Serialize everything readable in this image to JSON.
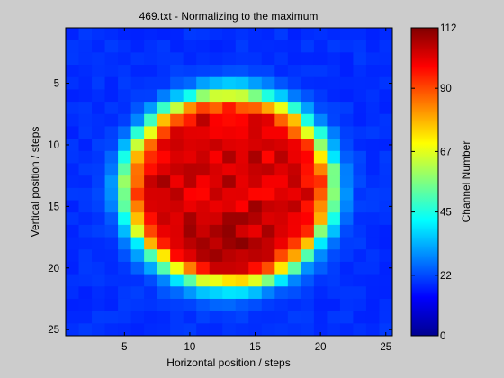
{
  "chart_data": {
    "type": "heatmap",
    "title": "469.txt - Normalizing to the maximum",
    "xlabel": "Horizontal position / steps",
    "ylabel": "Vertical position / steps",
    "colorbar_label": "Channel Number",
    "colormap": "jet",
    "xlim": [
      0.5,
      25.5
    ],
    "ylim": [
      0.5,
      25.5
    ],
    "y_reversed": true,
    "xticks": [
      5,
      10,
      15,
      20,
      25
    ],
    "xtick_labels": [
      "5",
      "10",
      "15",
      "20",
      "25"
    ],
    "yticks": [
      5,
      10,
      15,
      20,
      25
    ],
    "ytick_labels": [
      "5",
      "10",
      "15",
      "20",
      "25"
    ],
    "clim": [
      0,
      112
    ],
    "colorbar_ticks": [
      0,
      22,
      45,
      67,
      90,
      112
    ],
    "colorbar_tick_labels": [
      "0",
      "22",
      "45",
      "67",
      "90",
      "112"
    ],
    "grid": {
      "cols": 25,
      "rows": 25,
      "blob_center": [
        13.0,
        13.5
      ],
      "blob_radius_x": 9.6,
      "blob_radius_y": 9.4,
      "background_value": 19,
      "core_value": 103,
      "note_values_approximate": true
    }
  }
}
